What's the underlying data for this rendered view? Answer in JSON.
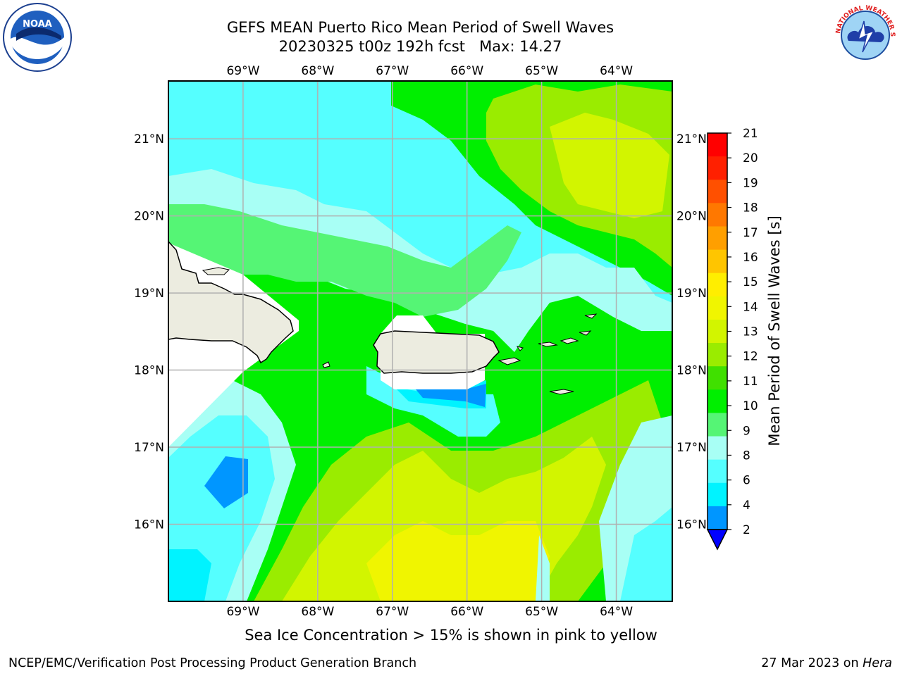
{
  "title": {
    "line1": "GEFS MEAN Puerto Rico Mean Period of Swell Waves",
    "line2": "20230325 t00z 192h fcst   Max: 14.27"
  },
  "map": {
    "lon_labels": [
      "69°W",
      "68°W",
      "67°W",
      "66°W",
      "65°W",
      "64°W"
    ],
    "lat_labels": [
      "21°N",
      "20°N",
      "19°N",
      "18°N",
      "17°N",
      "16°N"
    ],
    "lon_values": [
      -69,
      -68,
      -67,
      -66,
      -65,
      -64
    ],
    "lat_values": [
      21,
      20,
      19,
      18,
      17,
      16
    ],
    "extent": {
      "lon_min": -70,
      "lon_max": -63.25,
      "lat_min": 15,
      "lat_max": 21.75
    }
  },
  "colorbar": {
    "label": "Mean Period of Swell Waves [s]",
    "ticks": [
      "21",
      "20",
      "19",
      "18",
      "17",
      "16",
      "15",
      "14",
      "13",
      "12",
      "11",
      "10",
      "9",
      "8",
      "6",
      "4",
      "2"
    ],
    "colors": [
      "#ff0000",
      "#ff2000",
      "#ff5000",
      "#ff7800",
      "#ff9f00",
      "#ffc500",
      "#ffee00",
      "#f0f500",
      "#d2f500",
      "#9aec00",
      "#40e000",
      "#00ef00",
      "#55f575",
      "#a8fff5",
      "#55ffff",
      "#00f3ff",
      "#0096ff",
      "#0032ff"
    ],
    "extend_color": "#0000ff"
  },
  "note": "Sea Ice Concentration > 15% is shown in pink to yellow",
  "footer": {
    "left": "NCEP/EMC/Verification Post Processing Product Generation Branch",
    "right_date": "27 Mar 2023 on",
    "right_host": "Hera"
  },
  "logos": {
    "noaa": "NOAA",
    "nws": "NATIONAL WEATHER SERVICE"
  }
}
